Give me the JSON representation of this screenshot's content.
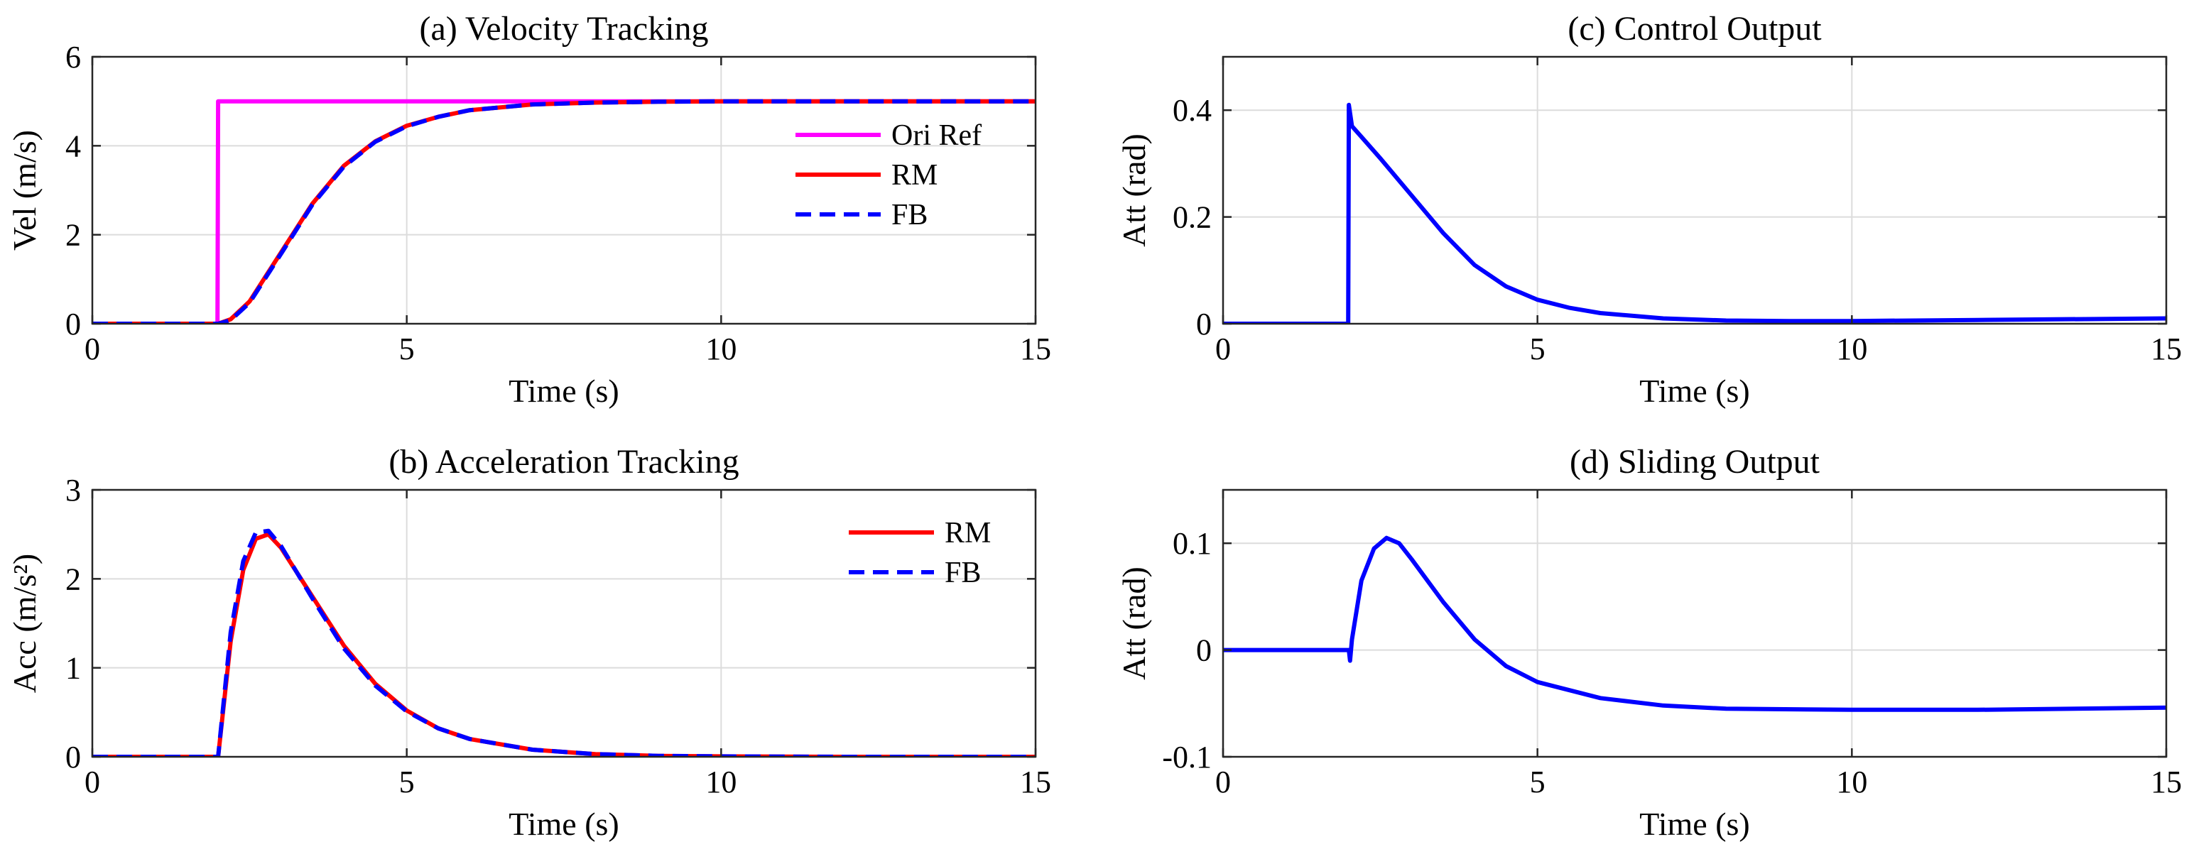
{
  "chart_data": [
    {
      "id": "a",
      "type": "line",
      "title": "(a) Velocity Tracking",
      "xlabel": "Time (s)",
      "ylabel": "Vel (m/s)",
      "xlim": [
        0,
        15
      ],
      "ylim": [
        0,
        6
      ],
      "xticks": [
        0,
        5,
        10,
        15
      ],
      "yticks": [
        0,
        2,
        4,
        6
      ],
      "xtick_labels": [
        "0",
        "5",
        "10",
        "15"
      ],
      "ytick_labels": [
        "0",
        "2",
        "4",
        "6"
      ],
      "grid": true,
      "legend_position": "right",
      "series": [
        {
          "name": "Ori Ref",
          "color": "#ff00ff",
          "dash": "solid",
          "x": [
            0,
            1.99,
            2.0,
            15
          ],
          "y": [
            0,
            0,
            5,
            5
          ]
        },
        {
          "name": "RM",
          "color": "#ff0000",
          "dash": "solid",
          "x": [
            0,
            2.0,
            2.2,
            2.5,
            3.0,
            3.5,
            4.0,
            4.5,
            5.0,
            5.5,
            6.0,
            7.0,
            8.0,
            9.0,
            10.0,
            12.0,
            15.0
          ],
          "y": [
            0,
            0,
            0.1,
            0.5,
            1.6,
            2.7,
            3.55,
            4.1,
            4.45,
            4.65,
            4.8,
            4.93,
            4.97,
            4.99,
            5.0,
            5.0,
            5.0
          ]
        },
        {
          "name": "FB",
          "color": "#0000ff",
          "dash": "dashed",
          "x": [
            0,
            2.0,
            2.2,
            2.5,
            3.0,
            3.5,
            4.0,
            4.5,
            5.0,
            5.5,
            6.0,
            7.0,
            8.0,
            9.0,
            10.0,
            12.0,
            15.0
          ],
          "y": [
            0,
            0,
            0.08,
            0.47,
            1.57,
            2.68,
            3.53,
            4.09,
            4.44,
            4.65,
            4.8,
            4.93,
            4.97,
            4.99,
            5.0,
            5.0,
            5.0
          ]
        }
      ]
    },
    {
      "id": "b",
      "type": "line",
      "title": "(b) Acceleration Tracking",
      "xlabel": "Time (s)",
      "ylabel": "Acc (m/s²)",
      "xlim": [
        0,
        15
      ],
      "ylim": [
        0,
        3
      ],
      "xticks": [
        0,
        5,
        10,
        15
      ],
      "yticks": [
        0,
        1,
        2,
        3
      ],
      "xtick_labels": [
        "0",
        "5",
        "10",
        "15"
      ],
      "ytick_labels": [
        "0",
        "1",
        "2",
        "3"
      ],
      "grid": true,
      "legend_position": "top-right",
      "series": [
        {
          "name": "RM",
          "color": "#ff0000",
          "dash": "solid",
          "x": [
            0,
            2.0,
            2.2,
            2.4,
            2.6,
            2.8,
            3.0,
            3.5,
            4.0,
            4.5,
            5.0,
            5.5,
            6.0,
            7.0,
            8.0,
            9.0,
            10.0,
            12.0,
            15.0
          ],
          "y": [
            0,
            0,
            1.3,
            2.1,
            2.45,
            2.5,
            2.35,
            1.8,
            1.25,
            0.82,
            0.52,
            0.32,
            0.2,
            0.08,
            0.03,
            0.01,
            0.005,
            0,
            0
          ]
        },
        {
          "name": "FB",
          "color": "#0000ff",
          "dash": "dashed",
          "x": [
            0,
            2.0,
            2.2,
            2.4,
            2.6,
            2.8,
            3.0,
            3.5,
            4.0,
            4.5,
            5.0,
            5.5,
            6.0,
            7.0,
            8.0,
            9.0,
            10.0,
            12.0,
            15.0
          ],
          "y": [
            0,
            0,
            1.4,
            2.2,
            2.52,
            2.54,
            2.37,
            1.78,
            1.22,
            0.8,
            0.51,
            0.32,
            0.2,
            0.08,
            0.03,
            0.01,
            0.005,
            0,
            0
          ]
        }
      ]
    },
    {
      "id": "c",
      "type": "line",
      "title": "(c) Control Output",
      "xlabel": "Time (s)",
      "ylabel": "Att (rad)",
      "xlim": [
        0,
        15
      ],
      "ylim": [
        0,
        0.5
      ],
      "xticks": [
        0,
        5,
        10,
        15
      ],
      "yticks": [
        0,
        0.2,
        0.4
      ],
      "xtick_labels": [
        "0",
        "5",
        "10",
        "15"
      ],
      "ytick_labels": [
        "0",
        "0.2",
        "0.4"
      ],
      "grid": true,
      "series": [
        {
          "name": "Control",
          "color": "#0000ff",
          "dash": "solid",
          "x": [
            0,
            1.99,
            2.0,
            2.05,
            2.2,
            2.5,
            3.0,
            3.5,
            4.0,
            4.5,
            5.0,
            5.5,
            6.0,
            7.0,
            8.0,
            9.0,
            10.0,
            12.0,
            15.0
          ],
          "y": [
            0,
            0,
            0.41,
            0.37,
            0.35,
            0.31,
            0.24,
            0.17,
            0.11,
            0.07,
            0.045,
            0.03,
            0.02,
            0.01,
            0.006,
            0.005,
            0.005,
            0.007,
            0.01
          ]
        }
      ]
    },
    {
      "id": "d",
      "type": "line",
      "title": "(d) Sliding Output",
      "xlabel": "Time (s)",
      "ylabel": "Att (rad)",
      "xlim": [
        0,
        15
      ],
      "ylim": [
        -0.1,
        0.15
      ],
      "xticks": [
        0,
        5,
        10,
        15
      ],
      "yticks": [
        -0.1,
        0,
        0.1
      ],
      "xtick_labels": [
        "0",
        "5",
        "10",
        "15"
      ],
      "ytick_labels": [
        "-0.1",
        "0",
        "0.1"
      ],
      "grid": true,
      "series": [
        {
          "name": "Sliding",
          "color": "#0000ff",
          "dash": "solid",
          "x": [
            0,
            2.0,
            2.02,
            2.05,
            2.2,
            2.4,
            2.6,
            2.8,
            3.0,
            3.5,
            4.0,
            4.5,
            5.0,
            6.0,
            7.0,
            8.0,
            10.0,
            12.0,
            15.0
          ],
          "y": [
            0,
            0,
            -0.01,
            0.01,
            0.065,
            0.095,
            0.105,
            0.1,
            0.085,
            0.045,
            0.01,
            -0.015,
            -0.03,
            -0.045,
            -0.052,
            -0.055,
            -0.056,
            -0.056,
            -0.054
          ]
        }
      ]
    }
  ]
}
